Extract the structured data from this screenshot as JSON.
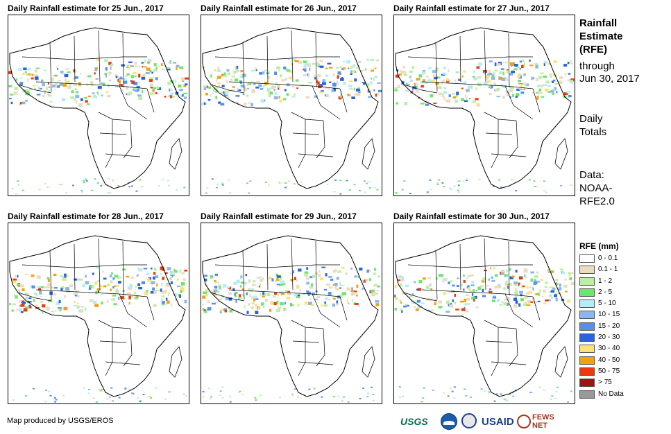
{
  "panels": [
    {
      "title": "Daily Rainfall estimate for 25 Jun., 2017",
      "seed": 25
    },
    {
      "title": "Daily Rainfall estimate for 26 Jun., 2017",
      "seed": 26
    },
    {
      "title": "Daily Rainfall estimate for 27 Jun., 2017",
      "seed": 27
    },
    {
      "title": "Daily Rainfall estimate for 28 Jun., 2017",
      "seed": 28
    },
    {
      "title": "Daily Rainfall estimate for 29 Jun., 2017",
      "seed": 29
    },
    {
      "title": "Daily Rainfall estimate for 30 Jun., 2017",
      "seed": 30
    }
  ],
  "sidebar": {
    "title_line1": "Rainfall",
    "title_line2": "Estimate",
    "title_line3": "(RFE)",
    "through_label": "through",
    "through_date": "Jun 30, 2017",
    "daily_line1": "Daily",
    "daily_line2": "Totals",
    "data_line1": "Data:",
    "data_line2": "NOAA-",
    "data_line3": "RFE2.0"
  },
  "legend": {
    "title": "RFE (mm)",
    "items": [
      {
        "label": "0 - 0.1",
        "color": "#ffffff"
      },
      {
        "label": "0.1 - 1",
        "color": "#eadcc0"
      },
      {
        "label": "1 - 2",
        "color": "#b9f0a6"
      },
      {
        "label": "2 - 5",
        "color": "#6ee66e"
      },
      {
        "label": "5 - 10",
        "color": "#b7ecf6"
      },
      {
        "label": "10 - 15",
        "color": "#88b8ee"
      },
      {
        "label": "15 - 20",
        "color": "#5591e6"
      },
      {
        "label": "20 - 30",
        "color": "#2a63db"
      },
      {
        "label": "30 - 40",
        "color": "#fbe27a"
      },
      {
        "label": "40 - 50",
        "color": "#f3a10f"
      },
      {
        "label": "50 - 75",
        "color": "#ea3b0c"
      },
      {
        "label": "> 75",
        "color": "#9c1414"
      },
      {
        "label": "No Data",
        "color": "#999999"
      }
    ]
  },
  "footer": {
    "credit": "Map produced by USGS/EROS",
    "logos": {
      "usgs": "USGS",
      "usaid": "USAID",
      "fews": "FEWS NET"
    }
  }
}
